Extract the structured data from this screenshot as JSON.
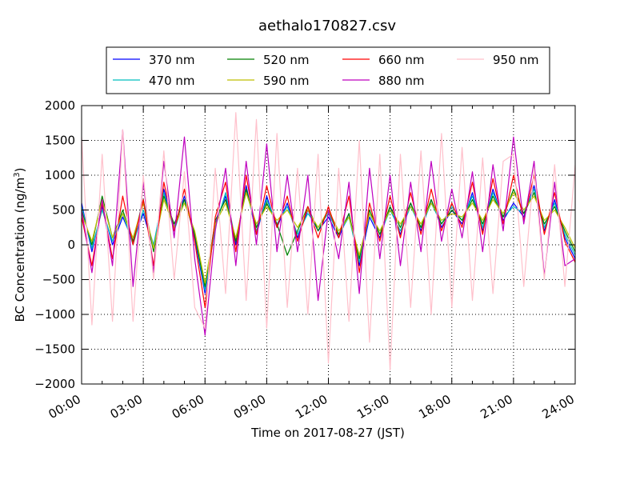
{
  "chart_data": {
    "type": "line",
    "title": "aethalo170827.csv",
    "xlabel": "Time on 2017-08-27 (JST)",
    "ylabel": "BC Concentration (ng/m",
    "ylabel_sup": "3",
    "ylabel_end": ")",
    "x_ticks": [
      "00:00",
      "03:00",
      "06:00",
      "09:00",
      "12:00",
      "15:00",
      "18:00",
      "21:00",
      "24:00"
    ],
    "xlim_hours": [
      0,
      24
    ],
    "x_unit": "hours since 00:00 on 2017-08-27",
    "ylim": [
      -2000,
      2000
    ],
    "y_ticks": [
      -2000,
      -1500,
      -1000,
      -500,
      0,
      500,
      1000,
      1500,
      2000
    ],
    "y_tick_labels": [
      "−2000",
      "−1500",
      "−1000",
      "−500",
      "0",
      "500",
      "1000",
      "1500",
      "2000"
    ],
    "grid": true,
    "legend_position": "top",
    "x": [
      0.0,
      0.5,
      1.0,
      1.5,
      2.0,
      2.5,
      3.0,
      3.5,
      4.0,
      4.5,
      5.0,
      5.5,
      6.0,
      6.5,
      7.0,
      7.5,
      8.0,
      8.5,
      9.0,
      9.5,
      10.0,
      10.5,
      11.0,
      11.5,
      12.0,
      12.5,
      13.0,
      13.5,
      14.0,
      14.5,
      15.0,
      15.5,
      16.0,
      16.5,
      17.0,
      17.5,
      18.0,
      18.5,
      19.0,
      19.5,
      20.0,
      20.5,
      21.0,
      21.5,
      22.0,
      22.5,
      23.0,
      23.5,
      24.0
    ],
    "series": [
      {
        "name": "370 nm",
        "color": "#0000ff",
        "values": [
          600,
          -100,
          550,
          0,
          400,
          50,
          450,
          -50,
          800,
          250,
          700,
          100,
          -700,
          300,
          700,
          0,
          850,
          150,
          700,
          250,
          600,
          100,
          500,
          200,
          400,
          100,
          450,
          -300,
          400,
          100,
          550,
          150,
          600,
          200,
          650,
          250,
          500,
          300,
          750,
          200,
          800,
          350,
          600,
          400,
          850,
          200,
          650,
          100,
          -200
        ]
      },
      {
        "name": "470 nm",
        "color": "#00bfbf",
        "values": [
          550,
          -50,
          500,
          50,
          450,
          0,
          500,
          0,
          750,
          200,
          650,
          150,
          -650,
          250,
          750,
          50,
          800,
          200,
          650,
          300,
          550,
          150,
          450,
          250,
          450,
          150,
          400,
          -250,
          450,
          150,
          500,
          200,
          550,
          250,
          600,
          300,
          550,
          350,
          700,
          250,
          750,
          400,
          550,
          450,
          800,
          250,
          600,
          150,
          -150
        ]
      },
      {
        "name": "520 nm",
        "color": "#008000",
        "values": [
          500,
          0,
          700,
          100,
          500,
          50,
          650,
          -100,
          700,
          300,
          650,
          150,
          -600,
          350,
          650,
          50,
          800,
          250,
          600,
          300,
          -150,
          200,
          550,
          200,
          500,
          150,
          450,
          -200,
          500,
          150,
          550,
          250,
          600,
          250,
          650,
          300,
          500,
          350,
          650,
          300,
          700,
          400,
          800,
          450,
          750,
          300,
          550,
          200,
          -100
        ]
      },
      {
        "name": "590 nm",
        "color": "#bfbf00",
        "values": [
          450,
          50,
          650,
          100,
          450,
          100,
          600,
          -50,
          650,
          250,
          600,
          200,
          -550,
          300,
          600,
          100,
          750,
          300,
          550,
          350,
          500,
          250,
          500,
          250,
          500,
          200,
          400,
          -150,
          450,
          200,
          500,
          300,
          550,
          300,
          600,
          350,
          450,
          400,
          600,
          350,
          650,
          450,
          750,
          500,
          700,
          350,
          500,
          250,
          -50
        ]
      },
      {
        "name": "660 nm",
        "color": "#ff0000",
        "values": [
          400,
          -300,
          600,
          -200,
          700,
          0,
          650,
          -300,
          900,
          200,
          800,
          50,
          -900,
          400,
          900,
          -100,
          1000,
          150,
          850,
          250,
          700,
          50,
          550,
          100,
          550,
          100,
          700,
          -400,
          600,
          50,
          700,
          100,
          750,
          150,
          800,
          200,
          600,
          250,
          900,
          150,
          950,
          300,
          1000,
          350,
          1000,
          150,
          750,
          50,
          -250
        ]
      },
      {
        "name": "880 nm",
        "color": "#bf00bf",
        "values": [
          500,
          -400,
          650,
          -300,
          1650,
          -600,
          900,
          -400,
          1200,
          100,
          1550,
          -200,
          -1300,
          200,
          1100,
          -300,
          1200,
          0,
          1450,
          -100,
          1000,
          -100,
          1000,
          -800,
          500,
          -200,
          900,
          -700,
          1100,
          -200,
          1000,
          -300,
          900,
          -100,
          1200,
          50,
          800,
          100,
          1050,
          -100,
          1150,
          200,
          1550,
          300,
          1200,
          -450,
          900,
          -300,
          -200
        ]
      },
      {
        "name": "950 nm",
        "color": "#ffc0cb",
        "values": [
          1550,
          -1150,
          1300,
          -1100,
          1650,
          -1100,
          1000,
          -500,
          1350,
          -500,
          1050,
          -900,
          -1200,
          1100,
          -700,
          1900,
          -800,
          1800,
          -1200,
          1600,
          -900,
          1100,
          -1000,
          1300,
          -1700,
          1100,
          -1100,
          1500,
          -1400,
          1300,
          -1800,
          1300,
          -900,
          1350,
          -1000,
          1600,
          -900,
          1400,
          -800,
          1250,
          -700,
          1200,
          1300,
          -600,
          1100,
          -500,
          1150,
          -600,
          1150
        ]
      }
    ]
  }
}
